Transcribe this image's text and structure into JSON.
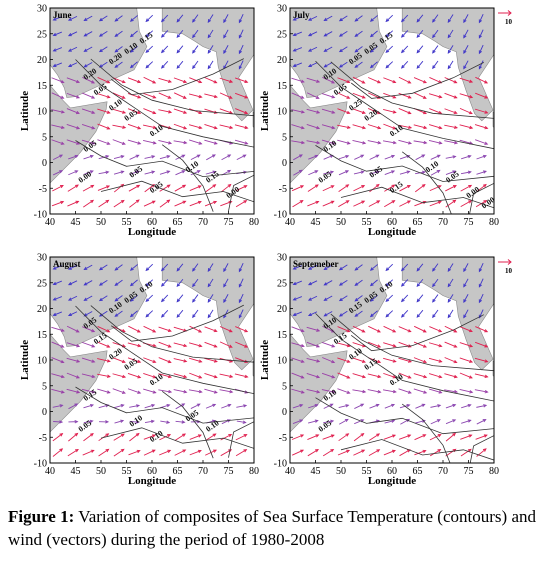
{
  "figure": {
    "panels": [
      {
        "id": "june",
        "label": "June",
        "has_scale": false,
        "scale_text": "",
        "contour_labels": [
          "0.15",
          "0.10",
          "0.20",
          "0.20",
          "0.05",
          "0.10",
          "0.05",
          "0.10",
          "0.05",
          "0.00",
          "0.05",
          "0.05",
          "0.10",
          "0.15",
          "0.00"
        ]
      },
      {
        "id": "july",
        "label": "July",
        "has_scale": true,
        "scale_text": "10",
        "contour_labels": [
          "0.15",
          "0.05",
          "0.05",
          "0.10",
          "0.05",
          "0.25",
          "0.20",
          "0.10",
          "0.10",
          "0.05",
          "0.05",
          "0.15",
          "0.10",
          "0.05",
          "0.00",
          "0.00"
        ]
      },
      {
        "id": "august",
        "label": "August",
        "has_scale": false,
        "scale_text": "",
        "contour_labels": [
          "0.10",
          "0.05",
          "0.10",
          "0.05",
          "0.15",
          "0.20",
          "0.05",
          "0.10",
          "0.15",
          "0.05",
          "0.10",
          "0.10",
          "0.05",
          "0.10"
        ]
      },
      {
        "id": "september",
        "label": "Septemeber",
        "has_scale": true,
        "scale_text": "10",
        "contour_labels": [
          "0.10",
          "0.05",
          "0.15",
          "0.10",
          "0.15",
          "0.10",
          "0.15",
          "0.10",
          "0.10",
          "0.05"
        ]
      }
    ],
    "xlabel": "Longitude",
    "ylabel": "Latitude",
    "x_ticks": [
      "40",
      "45",
      "50",
      "55",
      "60",
      "65",
      "70",
      "75",
      "80"
    ],
    "y_ticks": [
      "30",
      "25",
      "20",
      "15",
      "10",
      "5",
      "0",
      "-5",
      "-10"
    ],
    "colors": {
      "land": "#c6c6c6",
      "wind_strong": "#e0204f",
      "wind_weak": "#4036c8",
      "contour": "#333333"
    }
  },
  "caption": {
    "label": "Figure 1:",
    "text": " Variation of composites of Sea Surface Temperature (contours) and wind (vectors) during the period of 1980-2008"
  }
}
